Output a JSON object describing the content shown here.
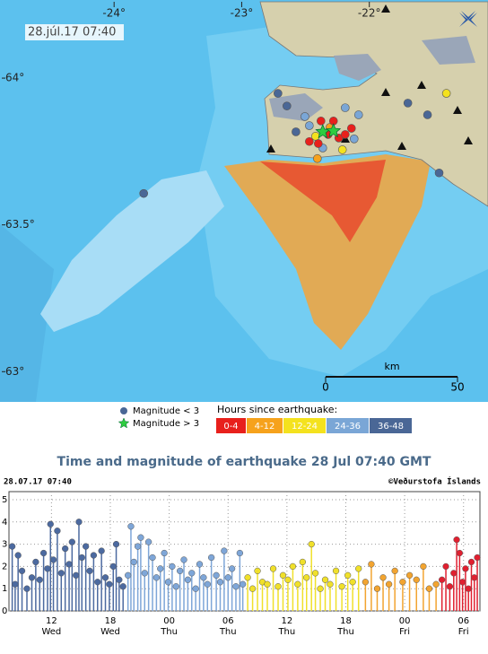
{
  "chart_data": [
    {
      "type": "map",
      "timestamp": "28.júl.17 07:40",
      "xlim": [
        -24.88,
        -21.07
      ],
      "ylim": [
        62.9,
        64.26
      ],
      "xticks": [
        {
          "value": -24,
          "label": "-24°"
        },
        {
          "value": -23,
          "label": "-23°"
        },
        {
          "value": -22,
          "label": "-22°"
        }
      ],
      "yticks": [
        {
          "value": 64,
          "label": "64°"
        },
        {
          "value": 63.5,
          "label": "63.5°"
        },
        {
          "value": 63,
          "label": "63°"
        }
      ],
      "scale": {
        "unit": "km",
        "ticks": [
          0,
          50
        ]
      },
      "symbols": [
        "Magnitude < 3",
        "Magnitude > 3"
      ],
      "legend_title": "Hours since earthquake:",
      "series": [
        {
          "name": "0-4",
          "color": "#e8201c",
          "x": [
            -22.379,
            -22.281,
            -22.14,
            -22.47,
            -22.4,
            -22.239,
            -22.323,
            -22.189
          ],
          "y": [
            63.854,
            63.854,
            63.829,
            63.784,
            63.777,
            63.796,
            63.808,
            63.808
          ]
        },
        {
          "name": "4-12",
          "color": "#f6a21c",
          "x": [
            -22.407,
            -22.309
          ],
          "y": [
            63.726,
            63.832
          ]
        },
        {
          "name": "12-24",
          "color": "#f4e21e",
          "x": [
            -21.396,
            -22.421,
            -22.211
          ],
          "y": [
            63.948,
            63.802,
            63.756
          ]
        },
        {
          "name": "24-36",
          "color": "#7aa6d6",
          "x": [
            -22.47,
            -22.084,
            -22.189,
            -22.505,
            -22.365,
            -22.119
          ],
          "y": [
            63.838,
            63.875,
            63.899,
            63.869,
            63.762,
            63.793
          ]
        },
        {
          "name": "36-48",
          "color": "#4a6796",
          "x": [
            -22.716,
            -23.768,
            -21.453,
            -21.698,
            -21.544,
            -22.575,
            -22.646
          ],
          "y": [
            63.948,
            63.607,
            63.677,
            63.915,
            63.875,
            63.817,
            63.905
          ]
        }
      ],
      "large": {
        "color": "#2ecc40",
        "x": [
          -22.365,
          -22.281
        ],
        "y": [
          63.817,
          63.82
        ]
      }
    },
    {
      "type": "stem",
      "title": "Time and magnitude of earthquake   28 Jul 07:40 GMT",
      "timestamp": "28.07.17 07:40",
      "credit": "©Veðurstofa Íslands",
      "xlim": [
        7.67,
        55.67
      ],
      "ylim": [
        0,
        5
      ],
      "yticks": [
        0,
        1,
        2,
        3,
        4,
        5
      ],
      "grid": true,
      "xticks": [
        12,
        18,
        {
          "value": 24,
          "label": "00"
        },
        {
          "value": 30,
          "label": "06"
        },
        {
          "value": 36,
          "label": "12"
        },
        {
          "value": 42,
          "label": "18"
        },
        {
          "value": 48,
          "label": "00"
        },
        {
          "value": 54,
          "label": "06"
        }
      ],
      "xtick_days": [
        "Wed",
        "Wed",
        "Thu",
        "Thu",
        "Thu",
        "Thu",
        "Fri",
        "Fri"
      ],
      "series": [
        {
          "color": "#4c6aa0",
          "x": [
            8.0,
            8.3,
            8.6,
            9.0,
            9.5,
            10.0,
            10.4,
            10.8,
            11.2,
            11.6,
            11.9,
            12.2,
            12.6,
            13.0,
            13.4,
            13.8,
            14.1,
            14.5,
            14.8,
            15.1,
            15.5,
            15.9,
            16.3,
            16.7,
            17.1,
            17.5,
            17.9,
            18.3,
            18.6,
            18.9,
            19.3
          ],
          "values": [
            2.9,
            1.2,
            2.5,
            1.8,
            1.0,
            1.5,
            2.2,
            1.4,
            2.6,
            1.9,
            3.9,
            2.3,
            3.6,
            1.7,
            2.8,
            2.1,
            3.1,
            1.6,
            4.0,
            2.4,
            2.9,
            1.8,
            2.5,
            1.3,
            2.7,
            1.5,
            1.2,
            2.0,
            3.0,
            1.4,
            1.1
          ]
        },
        {
          "color": "#7ea6d8",
          "x": [
            19.8,
            20.1,
            20.4,
            20.8,
            21.1,
            21.5,
            21.9,
            22.3,
            22.7,
            23.1,
            23.5,
            23.9,
            24.3,
            24.7,
            25.1,
            25.5,
            25.9,
            26.3,
            26.7,
            27.1,
            27.5,
            27.9,
            28.3,
            28.8,
            29.2,
            29.6,
            30.0,
            30.4,
            30.8,
            31.2,
            31.5
          ],
          "values": [
            1.6,
            3.8,
            2.2,
            2.9,
            3.3,
            1.7,
            3.1,
            2.4,
            1.5,
            1.9,
            2.6,
            1.3,
            2.0,
            1.1,
            1.8,
            2.3,
            1.4,
            1.7,
            1.0,
            2.1,
            1.5,
            1.2,
            2.4,
            1.6,
            1.3,
            2.7,
            1.5,
            1.9,
            1.1,
            2.6,
            1.2
          ]
        },
        {
          "color": "#f0e02a",
          "x": [
            32.0,
            32.5,
            33.0,
            33.5,
            34.0,
            34.6,
            35.1,
            35.6,
            36.1,
            36.6,
            37.1,
            37.6,
            38.0,
            38.5,
            38.9,
            39.4,
            39.9,
            40.4,
            41.0,
            41.6,
            42.2,
            42.7,
            43.3
          ],
          "values": [
            1.5,
            1.0,
            1.8,
            1.3,
            1.2,
            1.9,
            1.1,
            1.6,
            1.4,
            2.0,
            1.2,
            2.2,
            1.5,
            3.0,
            1.7,
            1.0,
            1.4,
            1.2,
            1.8,
            1.1,
            1.6,
            1.3,
            1.9
          ]
        },
        {
          "color": "#f2a430",
          "x": [
            44.0,
            44.6,
            45.2,
            45.8,
            46.4,
            47.0,
            47.8,
            48.5,
            49.2,
            49.9,
            50.5,
            51.2
          ],
          "values": [
            1.3,
            2.1,
            1.0,
            1.5,
            1.2,
            1.8,
            1.3,
            1.6,
            1.4,
            2.0,
            1.0,
            1.2
          ]
        },
        {
          "color": "#e02030",
          "x": [
            51.8,
            52.2,
            52.6,
            53.0,
            53.3,
            53.6,
            53.9,
            54.2,
            54.5,
            54.8,
            55.1,
            55.4
          ],
          "values": [
            1.4,
            2.0,
            1.1,
            1.7,
            3.2,
            2.6,
            1.3,
            1.9,
            1.0,
            2.2,
            1.5,
            2.4
          ]
        }
      ]
    }
  ]
}
